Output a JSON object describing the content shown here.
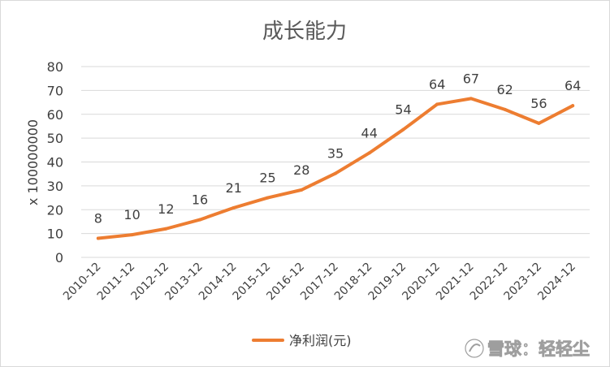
{
  "chart_data": {
    "type": "line",
    "title": "成长能力",
    "xlabel": "",
    "ylabel": "x 100000000",
    "ylim": [
      0,
      80
    ],
    "yticks": [
      0,
      10,
      20,
      30,
      40,
      50,
      60,
      70,
      80
    ],
    "grid": true,
    "legend_position": "bottom",
    "categories": [
      "2010-12",
      "2011-12",
      "2012-12",
      "2013-12",
      "2014-12",
      "2015-12",
      "2016-12",
      "2017-12",
      "2018-12",
      "2019-12",
      "2020-12",
      "2021-12",
      "2022-12",
      "2023-12",
      "2024-12"
    ],
    "series": [
      {
        "name": "净利润(元)",
        "color": "#ed7d31",
        "values": [
          8,
          9.5,
          12,
          15.8,
          20.8,
          25,
          28.3,
          35.2,
          43.8,
          53.6,
          64.2,
          66.6,
          62,
          56.2,
          63.6
        ],
        "data_labels": [
          "8",
          "10",
          "12",
          "16",
          "21",
          "25",
          "28",
          "35",
          "44",
          "54",
          "64",
          "67",
          "62",
          "56",
          "64"
        ]
      }
    ]
  },
  "watermark": {
    "text": "雪球：轻轻尘",
    "icon": "snowball-logo-icon"
  }
}
